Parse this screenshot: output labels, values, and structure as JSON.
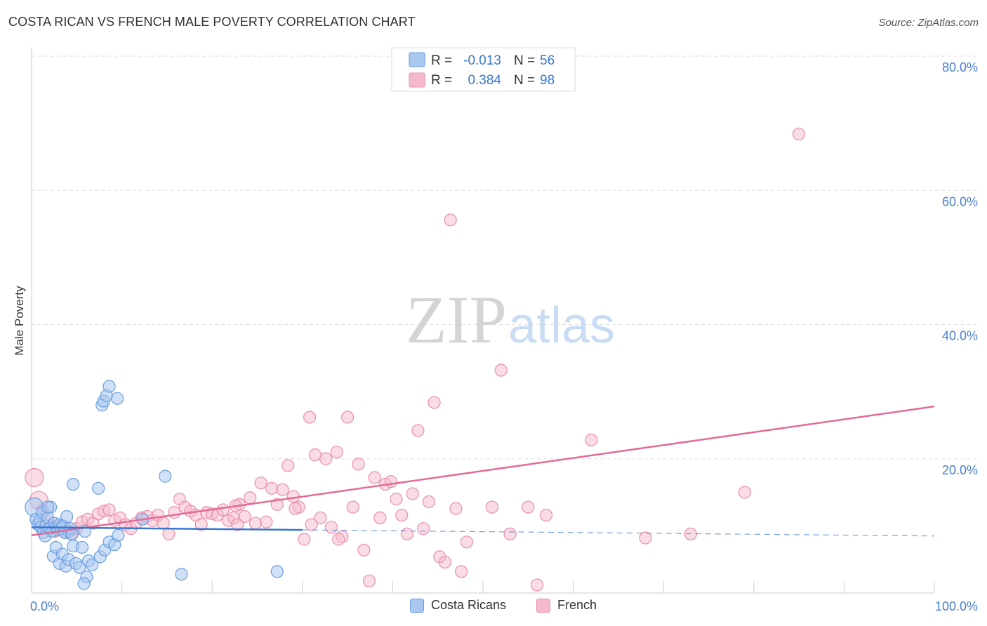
{
  "title": "COSTA RICAN VS FRENCH MALE POVERTY CORRELATION CHART",
  "source": "Source: ZipAtlas.com",
  "watermark": {
    "zip": "ZIP",
    "atlas": "atlas"
  },
  "colors": {
    "blue_fill": "#a9c8f0",
    "blue_stroke": "#6a9ee0",
    "blue_line": "#3a76d0",
    "pink_fill": "#f6b9cb",
    "pink_stroke": "#ea8fac",
    "pink_line": "#e36a96",
    "tick_label": "#4a7fd0",
    "grid": "#dddddd"
  },
  "legend_top": {
    "rows": [
      {
        "r_label": "R =",
        "r_value": "-0.013",
        "n_label": "N =",
        "n_value": "56"
      },
      {
        "r_label": "R =",
        "r_value": "0.384",
        "n_label": "N =",
        "n_value": "98"
      }
    ]
  },
  "legend_bottom": [
    "Costa Ricans",
    "French"
  ],
  "chart_data": {
    "type": "scatter",
    "title": "COSTA RICAN VS FRENCH MALE POVERTY CORRELATION CHART",
    "xlabel": "",
    "ylabel": "Male Poverty",
    "xlim": [
      0,
      100
    ],
    "ylim": [
      0,
      80
    ],
    "x_tick_labels": [
      "0.0%",
      "100.0%"
    ],
    "y_ticks": [
      20,
      40,
      60,
      80
    ],
    "y_tick_labels": [
      "20.0%",
      "40.0%",
      "60.0%",
      "80.0%"
    ],
    "grid": true,
    "legend_position": "top-center",
    "series": [
      {
        "name": "Costa Ricans",
        "r": -0.013,
        "n": 56,
        "trend": {
          "x0": 0,
          "y0": 9.8,
          "x1": 30,
          "y1": 9.4,
          "dashed_to_x": 100,
          "dashed_to_y": 8.5
        },
        "points": [
          [
            0.3,
            12.8
          ],
          [
            0.5,
            11.0
          ],
          [
            0.7,
            10.2
          ],
          [
            0.9,
            10.8
          ],
          [
            1.0,
            9.8
          ],
          [
            1.2,
            12.0
          ],
          [
            1.3,
            9.0
          ],
          [
            1.5,
            8.5
          ],
          [
            1.6,
            10.0
          ],
          [
            1.8,
            11.2
          ],
          [
            2.0,
            9.6
          ],
          [
            2.1,
            12.8
          ],
          [
            2.3,
            9.2
          ],
          [
            2.5,
            10.4
          ],
          [
            2.7,
            9.8
          ],
          [
            2.9,
            9.4
          ],
          [
            3.1,
            10.2
          ],
          [
            3.3,
            9.6
          ],
          [
            3.5,
            10.0
          ],
          [
            3.7,
            9.0
          ],
          [
            3.9,
            11.4
          ],
          [
            4.1,
            9.2
          ],
          [
            4.3,
            9.6
          ],
          [
            4.5,
            8.8
          ],
          [
            2.4,
            5.5
          ],
          [
            2.7,
            6.8
          ],
          [
            3.1,
            4.4
          ],
          [
            3.4,
            5.8
          ],
          [
            3.8,
            4.0
          ],
          [
            4.1,
            5.0
          ],
          [
            4.6,
            7.0
          ],
          [
            4.9,
            4.4
          ],
          [
            5.3,
            3.8
          ],
          [
            5.6,
            6.8
          ],
          [
            5.9,
            9.2
          ],
          [
            6.1,
            2.4
          ],
          [
            6.3,
            4.8
          ],
          [
            6.7,
            4.2
          ],
          [
            5.8,
            1.4
          ],
          [
            7.6,
            5.4
          ],
          [
            8.1,
            6.4
          ],
          [
            8.6,
            7.6
          ],
          [
            9.2,
            7.2
          ],
          [
            9.6,
            8.6
          ],
          [
            4.6,
            16.2
          ],
          [
            7.4,
            15.6
          ],
          [
            7.8,
            28.0
          ],
          [
            8.0,
            28.6
          ],
          [
            8.3,
            29.4
          ],
          [
            8.6,
            30.8
          ],
          [
            9.5,
            29.0
          ],
          [
            12.3,
            11.0
          ],
          [
            14.8,
            17.4
          ],
          [
            16.6,
            2.8
          ],
          [
            27.2,
            3.2
          ],
          [
            1.8,
            12.8
          ]
        ]
      },
      {
        "name": "French",
        "r": 0.384,
        "n": 98,
        "trend": {
          "x0": 0,
          "y0": 8.6,
          "x1": 100,
          "y1": 27.8
        },
        "points": [
          [
            0.3,
            17.2
          ],
          [
            0.8,
            13.8
          ],
          [
            1.2,
            12.4
          ],
          [
            1.6,
            10.8
          ],
          [
            2.0,
            9.8
          ],
          [
            2.6,
            9.2
          ],
          [
            3.2,
            10.0
          ],
          [
            3.8,
            9.0
          ],
          [
            4.4,
            8.8
          ],
          [
            5.0,
            9.6
          ],
          [
            5.6,
            10.6
          ],
          [
            6.2,
            11.0
          ],
          [
            6.8,
            10.4
          ],
          [
            7.4,
            11.8
          ],
          [
            8.0,
            12.2
          ],
          [
            8.6,
            12.4
          ],
          [
            9.2,
            10.8
          ],
          [
            9.8,
            11.2
          ],
          [
            10.4,
            10.2
          ],
          [
            11.0,
            9.6
          ],
          [
            11.6,
            10.4
          ],
          [
            12.2,
            11.2
          ],
          [
            12.8,
            11.4
          ],
          [
            13.4,
            10.8
          ],
          [
            14.0,
            11.6
          ],
          [
            14.6,
            10.4
          ],
          [
            15.2,
            8.8
          ],
          [
            15.8,
            12.0
          ],
          [
            16.4,
            14.0
          ],
          [
            17.0,
            12.8
          ],
          [
            17.6,
            12.2
          ],
          [
            18.2,
            11.6
          ],
          [
            18.8,
            10.2
          ],
          [
            19.4,
            12.0
          ],
          [
            20.0,
            11.8
          ],
          [
            20.6,
            11.6
          ],
          [
            21.2,
            12.4
          ],
          [
            21.8,
            10.8
          ],
          [
            22.4,
            11.2
          ],
          [
            23.0,
            13.2
          ],
          [
            23.6,
            11.4
          ],
          [
            24.2,
            14.2
          ],
          [
            24.8,
            10.4
          ],
          [
            25.4,
            16.4
          ],
          [
            26.0,
            10.6
          ],
          [
            26.6,
            15.6
          ],
          [
            27.2,
            13.2
          ],
          [
            27.8,
            15.4
          ],
          [
            28.4,
            19.0
          ],
          [
            29.0,
            14.4
          ],
          [
            29.6,
            12.8
          ],
          [
            30.2,
            8.0
          ],
          [
            30.8,
            26.2
          ],
          [
            31.4,
            20.6
          ],
          [
            32.0,
            11.2
          ],
          [
            32.6,
            20.0
          ],
          [
            33.2,
            9.8
          ],
          [
            33.8,
            21.0
          ],
          [
            34.4,
            8.4
          ],
          [
            35.0,
            26.2
          ],
          [
            35.6,
            12.8
          ],
          [
            36.2,
            19.2
          ],
          [
            36.8,
            6.4
          ],
          [
            37.4,
            1.8
          ],
          [
            38.0,
            17.2
          ],
          [
            38.6,
            11.2
          ],
          [
            39.2,
            16.2
          ],
          [
            39.8,
            16.6
          ],
          [
            40.4,
            14.0
          ],
          [
            41.0,
            11.6
          ],
          [
            41.6,
            8.8
          ],
          [
            42.2,
            14.8
          ],
          [
            42.8,
            24.2
          ],
          [
            43.4,
            9.6
          ],
          [
            44.0,
            13.6
          ],
          [
            44.6,
            28.4
          ],
          [
            45.2,
            5.4
          ],
          [
            45.8,
            4.6
          ],
          [
            46.4,
            55.6
          ],
          [
            47.0,
            12.6
          ],
          [
            47.6,
            3.2
          ],
          [
            48.2,
            7.6
          ],
          [
            51.0,
            12.8
          ],
          [
            52.0,
            33.2
          ],
          [
            53.0,
            8.8
          ],
          [
            55.0,
            12.8
          ],
          [
            56.0,
            1.2
          ],
          [
            57.0,
            11.6
          ],
          [
            62.0,
            22.8
          ],
          [
            68.0,
            8.2
          ],
          [
            73.0,
            8.8
          ],
          [
            79.0,
            15.0
          ],
          [
            85.0,
            68.4
          ],
          [
            29.2,
            12.6
          ],
          [
            31.0,
            10.2
          ],
          [
            34.0,
            8.0
          ],
          [
            22.8,
            10.2
          ],
          [
            22.6,
            13.0
          ]
        ]
      }
    ]
  }
}
